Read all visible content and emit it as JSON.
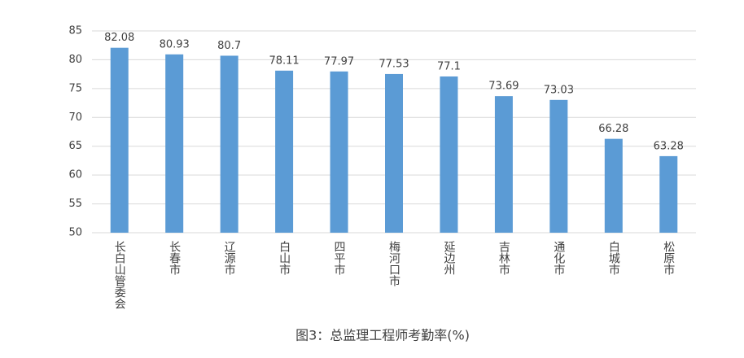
{
  "chart_data": {
    "type": "bar",
    "title": "图3：总监理工程师考勤率(%)",
    "categories": [
      "长白山管委会",
      "长春市",
      "辽源市",
      "白山市",
      "四平市",
      "梅河口市",
      "延边州",
      "吉林市",
      "通化市",
      "白城市",
      "松原市"
    ],
    "values": [
      82.08,
      80.93,
      80.7,
      78.11,
      77.97,
      77.53,
      77.1,
      73.69,
      73.03,
      66.28,
      63.28
    ],
    "color": "#5b9bd5",
    "ylim": [
      50,
      85
    ],
    "yticks": [
      50,
      55,
      60,
      65,
      70,
      75,
      80,
      85
    ],
    "grid": true
  }
}
